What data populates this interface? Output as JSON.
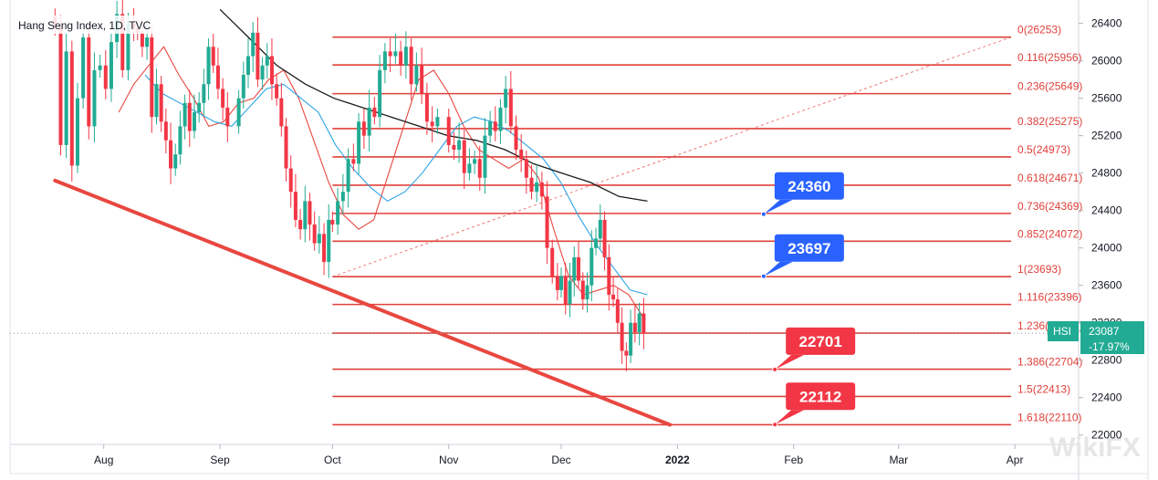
{
  "symbol": {
    "title": "Hang Seng Index, 1D, TVC",
    "tag": "HSI",
    "last_price": "23087",
    "change_pct": "-17.97%"
  },
  "colors": {
    "up": "#22ab94",
    "down": "#f23645",
    "fib": "#e0413a",
    "trendline": "#e8473f",
    "ma_fast": "#e8473f",
    "ma_mid": "#2ba3e6",
    "ma_slow": "#1a1a1a",
    "callout_blue": "#2962ff",
    "callout_red": "#f23645",
    "axis_text": "#131722",
    "price_tag": "#22ab94"
  },
  "watermark": "WikiFX",
  "chart_data": {
    "type": "candlestick",
    "title": "Hang Seng Index, 1D, TVC",
    "ylim": [
      21900,
      26650
    ],
    "y_ticks": [
      22000,
      22400,
      22800,
      23200,
      23600,
      24000,
      24400,
      24800,
      25200,
      25600,
      26000,
      26400
    ],
    "x_ticks": [
      {
        "label": "Aug",
        "date": "2021-08-01"
      },
      {
        "label": "Sep",
        "date": "2021-09-01"
      },
      {
        "label": "Oct",
        "date": "2021-10-01"
      },
      {
        "label": "Nov",
        "date": "2021-11-01"
      },
      {
        "label": "Dec",
        "date": "2021-12-01"
      },
      {
        "label": "2022",
        "date": "2022-01-01"
      },
      {
        "label": "Feb",
        "date": "2022-02-01"
      },
      {
        "label": "Mar",
        "date": "2022-03-01"
      },
      {
        "label": "Apr",
        "date": "2022-04-01"
      }
    ],
    "xlim": [
      "2021-07-07",
      "2022-04-18"
    ],
    "candle_segments": [
      {
        "start": "2021-07-19",
        "end": "2021-08-09",
        "values": [
          26350,
          25100,
          26100,
          24880,
          25600,
          26250,
          25300,
          25900,
          25950,
          25700,
          26200,
          26500,
          25900,
          26400,
          26350
        ]
      },
      {
        "start": "2021-08-10",
        "end": "2021-09-03",
        "values": [
          26300,
          26150,
          26250,
          25400,
          25750,
          25350,
          25150,
          24850,
          25000,
          25300,
          25550,
          25250,
          25450,
          25550,
          25750,
          26150,
          25950,
          25700,
          25500,
          25300
        ]
      },
      {
        "start": "2021-09-06",
        "end": "2021-09-30",
        "values": [
          25600,
          25850,
          26050,
          26300,
          25800,
          25950,
          26050,
          25750,
          25600,
          25300,
          24850,
          24600,
          24300,
          24200,
          24500,
          24250,
          24050,
          24150,
          23850,
          24300
        ]
      },
      {
        "start": "2021-10-01",
        "end": "2021-10-29",
        "values": [
          24250,
          24500,
          24600,
          24950,
          24900,
          25350,
          25200,
          25500,
          25400,
          25900,
          26100,
          26050,
          26100,
          25950,
          26150,
          25750,
          25950,
          25650,
          25350,
          25300,
          25400
        ]
      },
      {
        "start": "2021-11-01",
        "end": "2021-11-30",
        "values": [
          25100,
          25050,
          25150,
          24800,
          24900,
          24950,
          24750,
          25200,
          25350,
          25250,
          25500,
          25700,
          25300,
          25050,
          24950,
          24750,
          24600,
          24700,
          24550,
          24000,
          23700,
          23550
        ]
      },
      {
        "start": "2021-12-01",
        "end": "2021-12-23",
        "values": [
          23700,
          23400,
          23650,
          23900,
          23650,
          23450,
          23600,
          24000,
          24100,
          24300,
          23900,
          23500,
          23450,
          23200,
          22900,
          22850,
          23200,
          23100,
          23300,
          23087
        ]
      }
    ],
    "moving_averages": [
      {
        "name": "MA fast",
        "color": "#e8473f",
        "start": "2021-08-05",
        "end": "2021-12-23",
        "values": [
          25450,
          25750,
          25950,
          26150,
          25850,
          25600,
          25300,
          25350,
          25550,
          25600,
          25800,
          25900,
          25600,
          25150,
          24700,
          24350,
          24200,
          24300,
          24800,
          25300,
          25800,
          25900,
          25650,
          25300,
          25050,
          24950,
          24850,
          24950,
          24750,
          24200,
          23700,
          23500,
          23550,
          23600,
          23500,
          23250
        ]
      },
      {
        "name": "MA mid",
        "color": "#2ba3e6",
        "start": "2021-08-12",
        "end": "2021-12-24",
        "values": [
          25850,
          25650,
          25550,
          25450,
          25350,
          25300,
          25500,
          25700,
          25750,
          25600,
          25450,
          25100,
          24850,
          24650,
          24500,
          24600,
          24800,
          25050,
          25300,
          25400,
          25350,
          25250,
          25100,
          24950,
          24700,
          24350,
          24050,
          23800,
          23550,
          23500
        ]
      },
      {
        "name": "MA slow",
        "color": "#1a1a1a",
        "start": "2021-09-01",
        "end": "2021-12-24",
        "values": [
          26550,
          26250,
          25950,
          25750,
          25600,
          25500,
          25400,
          25300,
          25200,
          25150,
          25050,
          24900,
          24800,
          24700,
          24550,
          24500
        ]
      }
    ],
    "trendlines": [
      {
        "kind": "support",
        "from": {
          "date": "2021-07-19",
          "value": 24720
        },
        "to": {
          "date": "2021-12-30",
          "value": 22110
        }
      },
      {
        "kind": "fib-anchor",
        "from": {
          "date": "2021-10-01",
          "value": 23693
        },
        "to": {
          "date": "2022-03-31",
          "value": 26253
        }
      }
    ],
    "fib_levels": [
      {
        "label": "0(26253)",
        "value": 26253
      },
      {
        "label": "0.116(25956)",
        "value": 25956
      },
      {
        "label": "0.236(25649)",
        "value": 25649
      },
      {
        "label": "0.382(25275)",
        "value": 25275
      },
      {
        "label": "0.5(24973)",
        "value": 24973
      },
      {
        "label": "0.618(24671)",
        "value": 24671
      },
      {
        "label": "0.736(24369)",
        "value": 24369
      },
      {
        "label": "0.852(24072)",
        "value": 24072
      },
      {
        "label": "1(23693)",
        "value": 23693
      },
      {
        "label": "1.116(23396)",
        "value": 23396
      },
      {
        "label": "1.236(23089)",
        "value": 23089
      },
      {
        "label": "1.386(22704)",
        "value": 22704
      },
      {
        "label": "1.5(22413)",
        "value": 22413
      },
      {
        "label": "1.618(22110)",
        "value": 22110
      }
    ],
    "fib_range": {
      "start": "2021-10-01",
      "end": "2022-03-31"
    },
    "callouts": [
      {
        "text": "24360",
        "value": 24360,
        "date": "2022-01-24",
        "color": "blue"
      },
      {
        "text": "23697",
        "value": 23697,
        "date": "2022-01-24",
        "color": "blue"
      },
      {
        "text": "22701",
        "value": 22701,
        "date": "2022-01-27",
        "color": "red"
      },
      {
        "text": "22112",
        "value": 22112,
        "date": "2022-01-27",
        "color": "red"
      }
    ],
    "last_price_line": 23087
  }
}
